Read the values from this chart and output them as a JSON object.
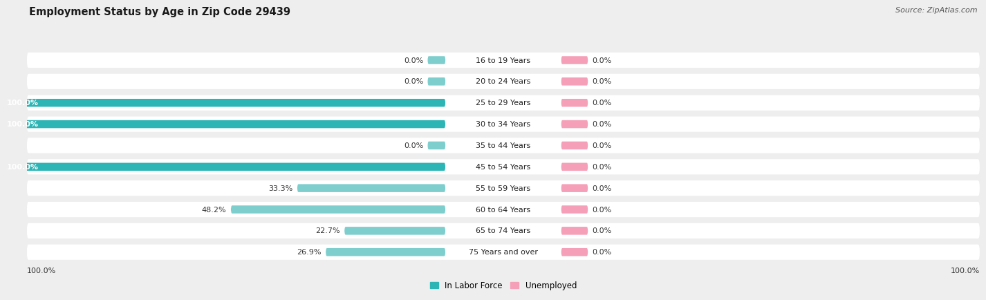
{
  "title": "Employment Status by Age in Zip Code 29439",
  "source": "Source: ZipAtlas.com",
  "categories": [
    "16 to 19 Years",
    "20 to 24 Years",
    "25 to 29 Years",
    "30 to 34 Years",
    "35 to 44 Years",
    "45 to 54 Years",
    "55 to 59 Years",
    "60 to 64 Years",
    "65 to 74 Years",
    "75 Years and over"
  ],
  "labor_force": [
    0.0,
    0.0,
    100.0,
    100.0,
    0.0,
    100.0,
    33.3,
    48.2,
    22.7,
    26.9
  ],
  "unemployed": [
    0.0,
    0.0,
    0.0,
    0.0,
    0.0,
    0.0,
    0.0,
    0.0,
    0.0,
    0.0
  ],
  "labor_force_color_full": "#2db5b5",
  "labor_force_color_partial": "#7ecece",
  "unemployed_color": "#f5a0b8",
  "row_bg_color": "#ffffff",
  "fig_bg_color": "#eeeeee",
  "legend_labor": "In Labor Force",
  "legend_unemployed": "Unemployed",
  "title_fontsize": 10.5,
  "source_fontsize": 8,
  "label_fontsize": 8,
  "category_fontsize": 8,
  "axis_label_fontsize": 8,
  "unemp_stub_pct": 6.0,
  "lf_stub_pct": 4.0
}
